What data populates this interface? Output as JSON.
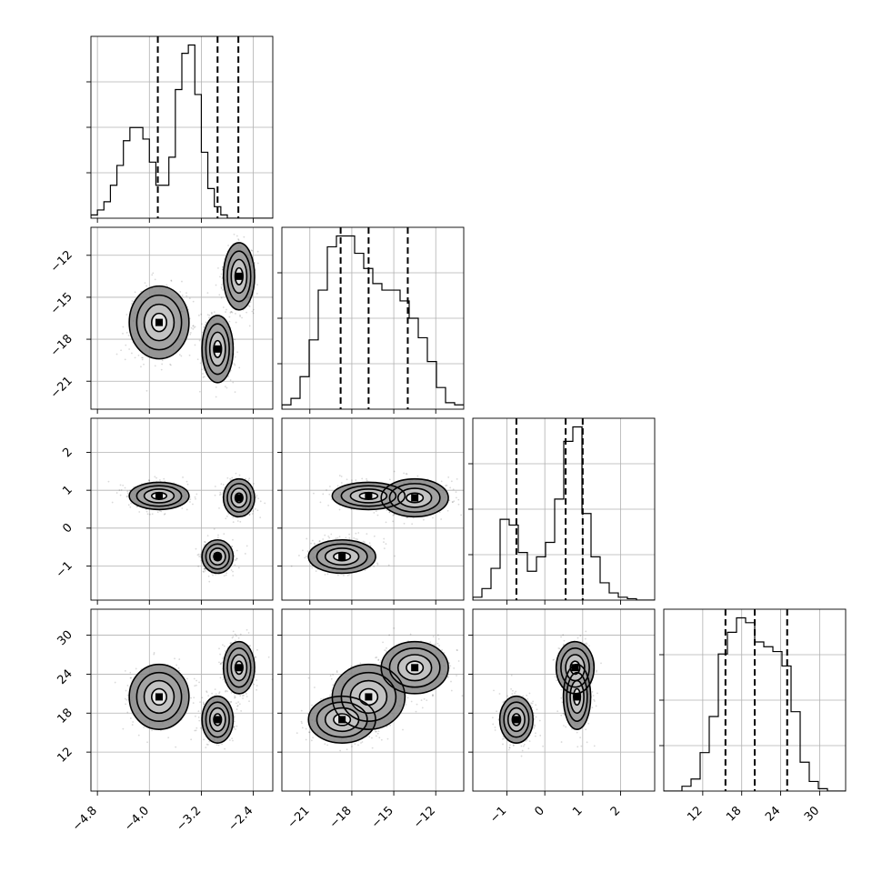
{
  "chart_data": {
    "type": "corner",
    "parameters": [
      {
        "range": [
          -4.9,
          -2.1
        ],
        "ticks": [
          -4.8,
          -4.0,
          -3.2,
          -2.4
        ],
        "tick_labels": [
          "−4.8",
          "−4.0",
          "−3.2",
          "−2.4"
        ],
        "quantiles": [
          -3.87,
          -2.95,
          -2.63
        ]
      },
      {
        "range": [
          -23.0,
          -10.0
        ],
        "ticks": [
          -21,
          -18,
          -15,
          -12
        ],
        "tick_labels": [
          "−21",
          "−18",
          "−15",
          "−12"
        ],
        "quantiles": [
          -18.8,
          -16.8,
          -14.0
        ]
      },
      {
        "range": [
          -1.9,
          2.9
        ],
        "ticks": [
          -1,
          0,
          1,
          2
        ],
        "tick_labels": [
          "−1",
          "0",
          "1",
          "2"
        ],
        "quantiles": [
          -0.75,
          0.55,
          1.0
        ]
      },
      {
        "range": [
          6.0,
          34.0
        ],
        "ticks": [
          12,
          18,
          24,
          30
        ],
        "tick_labels": [
          "12",
          "18",
          "24",
          "30"
        ],
        "quantiles": [
          15.5,
          20.0,
          25.0
        ]
      }
    ],
    "histograms": [
      {
        "bin_width": 0.1,
        "bins_start": -4.9,
        "counts": [
          0.02,
          0.05,
          0.1,
          0.2,
          0.32,
          0.47,
          0.55,
          0.55,
          0.48,
          0.34,
          0.2,
          0.2,
          0.37,
          0.78,
          1.0,
          1.05,
          0.75,
          0.4,
          0.18,
          0.07,
          0.02,
          0.0,
          0.0,
          0.0,
          0.0,
          0.0,
          0.0,
          0.0
        ]
      },
      {
        "bin_width": 0.65,
        "bins_start": -23.0,
        "counts": [
          0.02,
          0.05,
          0.15,
          0.32,
          0.55,
          0.75,
          0.8,
          0.8,
          0.72,
          0.65,
          0.58,
          0.55,
          0.55,
          0.5,
          0.42,
          0.33,
          0.22,
          0.1,
          0.03,
          0.02
        ]
      },
      {
        "bin_width": 0.24,
        "bins_start": -1.9,
        "counts": [
          0.02,
          0.08,
          0.22,
          0.56,
          0.52,
          0.33,
          0.2,
          0.3,
          0.4,
          0.7,
          1.1,
          1.2,
          0.6,
          0.3,
          0.12,
          0.05,
          0.02,
          0.01,
          0.0,
          0.0
        ]
      },
      {
        "bin_width": 1.4,
        "bins_start": 6.0,
        "counts": [
          0.0,
          0.0,
          0.02,
          0.05,
          0.16,
          0.31,
          0.57,
          0.66,
          0.72,
          0.7,
          0.62,
          0.6,
          0.58,
          0.52,
          0.33,
          0.12,
          0.04,
          0.01,
          0.0,
          0.0
        ]
      }
    ],
    "mixture_components": [
      {
        "mean": [
          -3.85,
          -16.8,
          0.85,
          20.5
        ],
        "std": [
          0.23,
          1.3,
          0.18,
          2.5
        ],
        "weight": 0.33
      },
      {
        "mean": [
          -2.95,
          -18.7,
          -0.75,
          17.0
        ],
        "std": [
          0.12,
          1.2,
          0.22,
          1.8
        ],
        "weight": 0.33
      },
      {
        "mean": [
          -2.62,
          -13.5,
          0.8,
          25.0
        ],
        "std": [
          0.12,
          1.2,
          0.25,
          2.0
        ],
        "weight": 0.34
      }
    ],
    "contour_levels": [
      {
        "sigma": 0.5
      },
      {
        "sigma": 1.0
      },
      {
        "sigma": 1.5
      },
      {
        "sigma": 2.0
      }
    ],
    "grid": true
  }
}
